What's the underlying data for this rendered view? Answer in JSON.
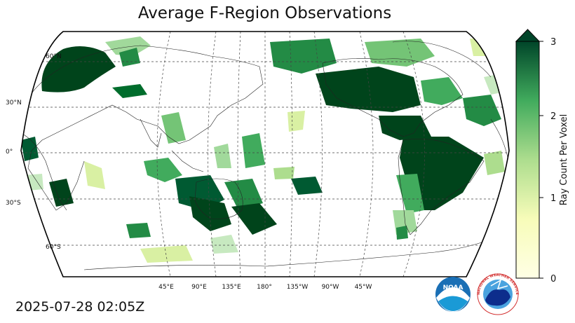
{
  "title": "Average F-Region Observations",
  "timestamp": "2025-07-28 02:05Z",
  "map": {
    "projection": "robinson",
    "central_longitude": 180,
    "lat_labels": [
      "60°N",
      "30°N",
      "0°",
      "30°S",
      "60°S"
    ],
    "lon_labels": [
      "45°E",
      "90°E",
      "135°E",
      "180°",
      "135°W",
      "90°W",
      "45°W"
    ],
    "colormap": "Greens"
  },
  "colorbar": {
    "label": "Ray Count Per Voxel",
    "ticks": [
      "0",
      "1",
      "2",
      "3"
    ],
    "min": 0,
    "max": 3,
    "extend": "max",
    "color_low": "#ffffe5",
    "color_mid": "#78c679",
    "color_high": "#004529"
  },
  "logos": {
    "noaa_text": "NOAA",
    "nws_text": "NATIONAL WEATHER SERVICE"
  }
}
